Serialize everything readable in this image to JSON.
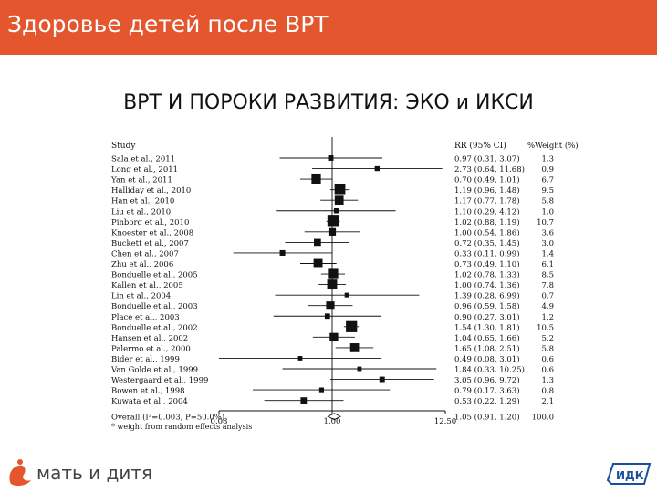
{
  "header": {
    "title": "Здоровье детей после ВРТ",
    "bar_color": "#e4572e"
  },
  "slide": {
    "title": "ВРТ И ПОРОКИ РАЗВИТИЯ: ЭКО и ИКСИ"
  },
  "footer": {
    "brand_name": "мать и дитя",
    "brand_logo_icon": "swan-logo-icon",
    "partner_logo_icon": "idk-logo-icon",
    "partner_logo_text": "ИДК"
  },
  "chart_data": {
    "type": "forest",
    "header_study": "Study",
    "header_rr": "RR  (95% CI)",
    "header_weight": "%Weight (%)",
    "x_scale": "log",
    "x_ticks": [
      "0.08",
      "1.00",
      "12.50"
    ],
    "x_tick_values": [
      0.08,
      1.0,
      12.5
    ],
    "reference_line": 1.0,
    "studies": [
      {
        "name": "Sala et al., 2011",
        "rr": "0.97 (0.31, 3.07)",
        "weight": "1.3"
      },
      {
        "name": "Long et al., 2011",
        "rr": "2.73 (0.64, 11.68)",
        "weight": "0.9"
      },
      {
        "name": "Yan et al., 2011",
        "rr": "0.70 (0.49, 1.01)",
        "weight": "6.7"
      },
      {
        "name": "Halliday et al., 2010",
        "rr": "1.19 (0.96, 1.48)",
        "weight": "9.5"
      },
      {
        "name": "Han et al., 2010",
        "rr": "1.17 (0.77, 1.78)",
        "weight": "5.8"
      },
      {
        "name": "Liu et al., 2010",
        "rr": "1.10 (0.29, 4.12)",
        "weight": "1.0"
      },
      {
        "name": "Pinborg et al., 2010",
        "rr": "1.02 (0.88, 1.19)",
        "weight": "10.7"
      },
      {
        "name": "Knoester et al., 2008",
        "rr": "1.00 (0.54, 1.86)",
        "weight": "3.6"
      },
      {
        "name": "Buckett et al., 2007",
        "rr": "0.72 (0.35, 1.45)",
        "weight": "3.0"
      },
      {
        "name": "Chen et al., 2007",
        "rr": "0.33 (0.11, 0.99)",
        "weight": "1.4"
      },
      {
        "name": "Zhu et al., 2006",
        "rr": "0.73 (0.49, 1.10)",
        "weight": "6.1"
      },
      {
        "name": "Bonduelle et al., 2005",
        "rr": "1.02 (0.78, 1.33)",
        "weight": "8.5"
      },
      {
        "name": "Kallen et al., 2005",
        "rr": "1.00 (0.74, 1.36)",
        "weight": "7.8"
      },
      {
        "name": "Lin et al., 2004",
        "rr": "1.39 (0.28, 6.99)",
        "weight": "0.7"
      },
      {
        "name": "Bonduelle et al., 2003",
        "rr": "0.96 (0.59, 1.58)",
        "weight": "4.9"
      },
      {
        "name": "Place et al., 2003",
        "rr": "0.90 (0.27, 3.01)",
        "weight": "1.2"
      },
      {
        "name": "Bonduelle et al., 2002",
        "rr": "1.54 (1.30, 1.81)",
        "weight": "10.5"
      },
      {
        "name": "Hansen et al., 2002",
        "rr": "1.04 (0.65, 1.66)",
        "weight": "5.2"
      },
      {
        "name": "Palermo et al., 2000",
        "rr": "1.65 (1.08, 2.51)",
        "weight": "5.8"
      },
      {
        "name": "Bider et al., 1999",
        "rr": "0.49 (0.08, 3.01)",
        "weight": "0.6"
      },
      {
        "name": "Van Golde et al., 1999",
        "rr": "1.84 (0.33, 10.25)",
        "weight": "0.6"
      },
      {
        "name": "Westergaard et al., 1999",
        "rr": "3.05 (0.96, 9.72)",
        "weight": "1.3"
      },
      {
        "name": "Bowen et al., 1998",
        "rr": "0.79 (0.17, 3.63)",
        "weight": "0.8"
      },
      {
        "name": "Kuwata et al., 2004",
        "rr": "0.53 (0.22, 1.29)",
        "weight": "2.1"
      }
    ],
    "overall": {
      "label": "Overall (I²=0.003, P=50.0%)",
      "rr": "1.05 (0.91, 1.20)",
      "weight": "100.0"
    },
    "footnote": "* weight from random effects analysis"
  }
}
